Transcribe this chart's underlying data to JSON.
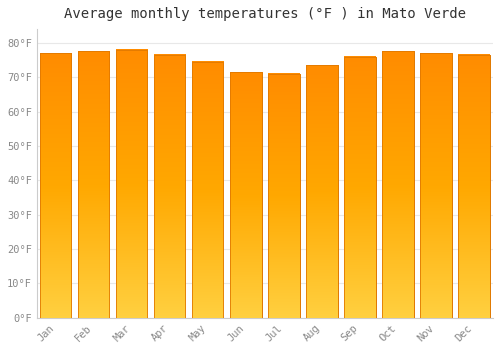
{
  "months": [
    "Jan",
    "Feb",
    "Mar",
    "Apr",
    "May",
    "Jun",
    "Jul",
    "Aug",
    "Sep",
    "Oct",
    "Nov",
    "Dec"
  ],
  "values": [
    77.0,
    77.5,
    78.0,
    76.5,
    74.5,
    71.5,
    71.0,
    73.5,
    76.0,
    77.5,
    77.0,
    76.5
  ],
  "bar_color_bottom": "#FFC200",
  "bar_color_top": "#FF8C00",
  "bar_color_mid": "#FFB300",
  "bar_edge_color": "#E07800",
  "background_color": "#FFFFFF",
  "grid_color": "#E8E8E8",
  "title": "Average monthly temperatures (°F ) in Mato Verde",
  "title_fontsize": 10,
  "ylabel_ticks": [
    0,
    10,
    20,
    30,
    40,
    50,
    60,
    70,
    80
  ],
  "ylim": [
    0,
    84
  ],
  "tick_label_color": "#888888",
  "axis_color": "#CCCCCC",
  "font_family": "monospace"
}
